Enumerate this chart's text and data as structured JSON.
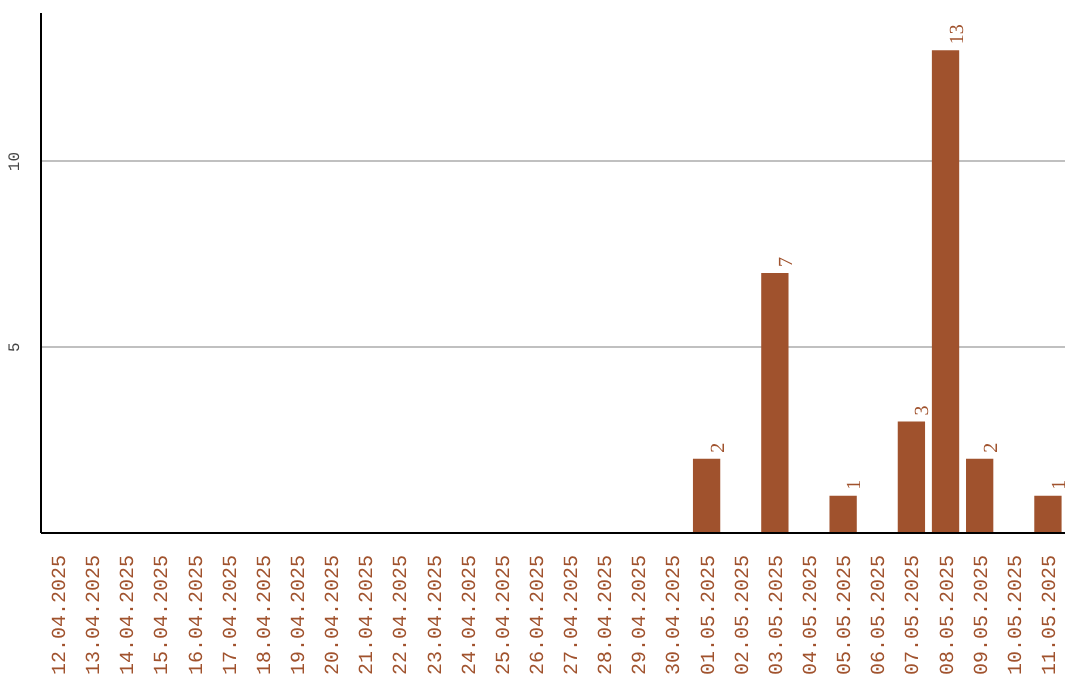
{
  "chart_data": {
    "type": "bar",
    "categories": [
      "12.04.2025",
      "13.04.2025",
      "14.04.2025",
      "15.04.2025",
      "16.04.2025",
      "17.04.2025",
      "18.04.2025",
      "19.04.2025",
      "20.04.2025",
      "21.04.2025",
      "22.04.2025",
      "23.04.2025",
      "24.04.2025",
      "25.04.2025",
      "26.04.2025",
      "27.04.2025",
      "28.04.2025",
      "29.04.2025",
      "30.04.2025",
      "01.05.2025",
      "02.05.2025",
      "03.05.2025",
      "04.05.2025",
      "05.05.2025",
      "06.05.2025",
      "07.05.2025",
      "08.05.2025",
      "09.05.2025",
      "10.05.2025",
      "11.05.2025"
    ],
    "values": [
      0,
      0,
      0,
      0,
      0,
      0,
      0,
      0,
      0,
      0,
      0,
      0,
      0,
      0,
      0,
      0,
      0,
      0,
      0,
      2,
      0,
      7,
      0,
      1,
      0,
      3,
      13,
      2,
      0,
      1
    ],
    "value_labels": [
      null,
      null,
      null,
      null,
      null,
      null,
      null,
      null,
      null,
      null,
      null,
      null,
      null,
      null,
      null,
      null,
      null,
      null,
      null,
      "2",
      null,
      "7",
      null,
      "1",
      null,
      "3",
      "13",
      "2",
      null,
      "1"
    ],
    "color": "#a0522d",
    "ylim": [
      0,
      14
    ],
    "yticks": [
      5,
      10
    ],
    "grid": "y"
  }
}
